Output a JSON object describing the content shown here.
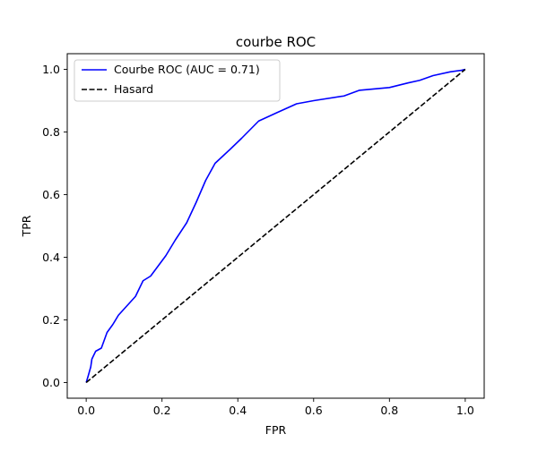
{
  "chart_data": {
    "type": "line",
    "title": "courbe ROC",
    "xlabel": "FPR",
    "ylabel": "TPR",
    "xlim": [
      -0.05,
      1.05
    ],
    "ylim": [
      -0.05,
      1.05
    ],
    "xticks": [
      0.0,
      0.2,
      0.4,
      0.6,
      0.8,
      1.0
    ],
    "yticks": [
      0.0,
      0.2,
      0.4,
      0.6,
      0.8,
      1.0
    ],
    "xtick_labels": [
      "0.0",
      "0.2",
      "0.4",
      "0.6",
      "0.8",
      "1.0"
    ],
    "ytick_labels": [
      "0.0",
      "0.2",
      "0.4",
      "0.6",
      "0.8",
      "1.0"
    ],
    "grid": false,
    "legend_position": "upper-left",
    "series": [
      {
        "name": "Courbe ROC (AUC = 0.71)",
        "color": "#0000ff",
        "linestyle": "solid",
        "x": [
          0.0,
          0.005,
          0.012,
          0.015,
          0.025,
          0.04,
          0.055,
          0.07,
          0.085,
          0.1,
          0.13,
          0.15,
          0.17,
          0.21,
          0.235,
          0.265,
          0.29,
          0.315,
          0.34,
          0.38,
          0.41,
          0.455,
          0.5,
          0.555,
          0.6,
          0.68,
          0.72,
          0.8,
          0.85,
          0.88,
          0.915,
          0.96,
          0.99,
          1.0
        ],
        "y": [
          0.0,
          0.02,
          0.05,
          0.075,
          0.1,
          0.11,
          0.16,
          0.185,
          0.215,
          0.235,
          0.275,
          0.325,
          0.34,
          0.405,
          0.455,
          0.51,
          0.575,
          0.645,
          0.7,
          0.745,
          0.78,
          0.835,
          0.86,
          0.89,
          0.9,
          0.915,
          0.933,
          0.942,
          0.957,
          0.965,
          0.98,
          0.992,
          0.997,
          1.0
        ]
      },
      {
        "name": "Hasard",
        "color": "#000000",
        "linestyle": "dashed",
        "x": [
          0.0,
          1.0
        ],
        "y": [
          0.0,
          1.0
        ]
      }
    ]
  }
}
